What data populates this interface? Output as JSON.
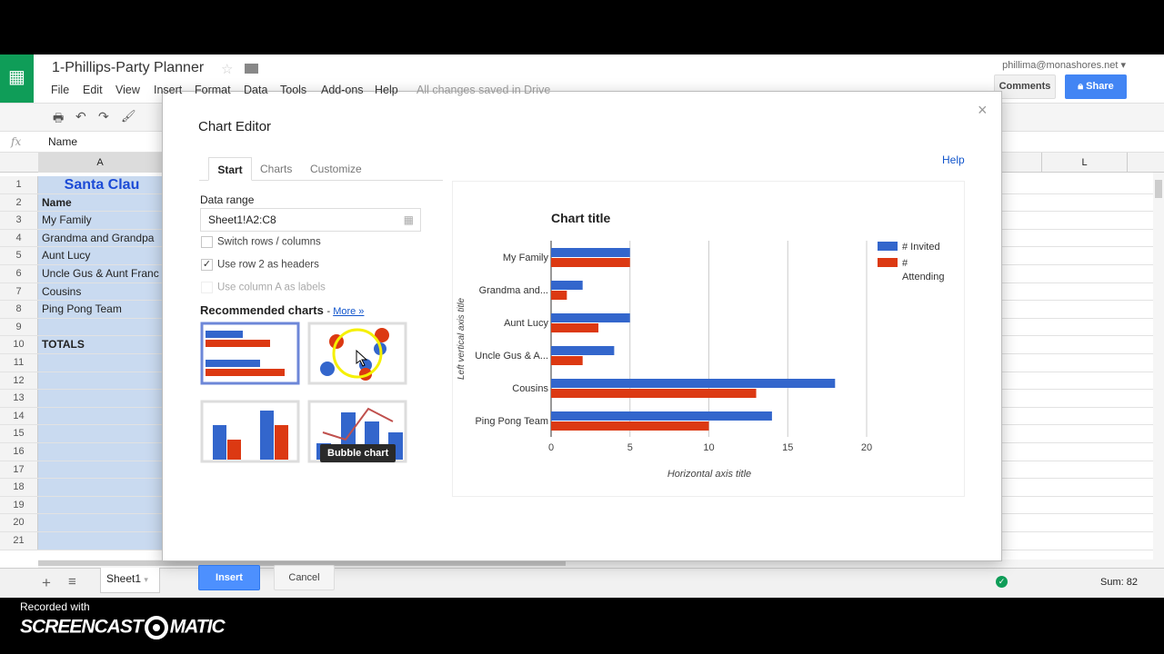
{
  "app": {
    "doc_title": "1-Phillips-Party Planner",
    "menu": [
      "File",
      "Edit",
      "View",
      "Insert",
      "Format",
      "Data",
      "Tools",
      "Add-ons",
      "Help"
    ],
    "saved_status": "All changes saved in Drive",
    "user": "phillima@monashores.net",
    "comments_label": "Comments",
    "share_label": "Share",
    "formula_label": "fx",
    "formula_value": "Name"
  },
  "sheet": {
    "col_a": "A",
    "col_l": "L",
    "rows": [
      {
        "n": "1",
        "a": "Santa Clau"
      },
      {
        "n": "2",
        "a": "Name"
      },
      {
        "n": "3",
        "a": "My Family"
      },
      {
        "n": "4",
        "a": "Grandma and Grandpa"
      },
      {
        "n": "5",
        "a": "Aunt Lucy"
      },
      {
        "n": "6",
        "a": "Uncle Gus & Aunt Franc"
      },
      {
        "n": "7",
        "a": "Cousins"
      },
      {
        "n": "8",
        "a": "Ping Pong Team"
      },
      {
        "n": "9",
        "a": ""
      },
      {
        "n": "10",
        "a": "TOTALS"
      },
      {
        "n": "11",
        "a": ""
      },
      {
        "n": "12",
        "a": ""
      },
      {
        "n": "13",
        "a": ""
      },
      {
        "n": "14",
        "a": ""
      },
      {
        "n": "15",
        "a": ""
      },
      {
        "n": "16",
        "a": ""
      },
      {
        "n": "17",
        "a": ""
      },
      {
        "n": "18",
        "a": ""
      },
      {
        "n": "19",
        "a": ""
      },
      {
        "n": "20",
        "a": ""
      },
      {
        "n": "21",
        "a": ""
      }
    ],
    "sheet_tab": "Sheet1",
    "sum": "Sum: 82"
  },
  "dialog": {
    "title": "Chart Editor",
    "help": "Help",
    "tabs": [
      "Start",
      "Charts",
      "Customize"
    ],
    "data_range_label": "Data range",
    "data_range_value": "Sheet1!A2:C8",
    "switch_label": "Switch rows / columns",
    "headers_label": "Use row 2 as headers",
    "headers_checked": true,
    "labels_label": "Use column A as labels",
    "recommended_label": "Recommended charts",
    "more_link": "More »",
    "tooltip": "Bubble chart",
    "insert_label": "Insert",
    "cancel_label": "Cancel"
  },
  "watermark": {
    "recorded": "Recorded with",
    "logo": "SCREENCAST-O-MATIC"
  },
  "colors": {
    "invited": "#3366cc",
    "attending": "#dc3912",
    "share": "#4285f4",
    "sheets_green": "#0f9d58"
  },
  "chart_data": {
    "type": "bar",
    "orientation": "horizontal",
    "title": "Chart title",
    "xlabel": "Horizontal axis title",
    "ylabel": "Left vertical axis title",
    "categories": [
      "My Family",
      "Grandma and...",
      "Aunt Lucy",
      "Uncle Gus & A...",
      "Cousins",
      "Ping Pong Team"
    ],
    "series": [
      {
        "name": "# Invited",
        "values": [
          5,
          2,
          5,
          4,
          18,
          14
        ]
      },
      {
        "name": "# Attending",
        "values": [
          5,
          1,
          3,
          2,
          13,
          10
        ]
      }
    ],
    "xlim": [
      0,
      20
    ],
    "xticks": [
      "0",
      "5",
      "10",
      "15",
      "20"
    ],
    "grid": true,
    "legend": "right"
  }
}
